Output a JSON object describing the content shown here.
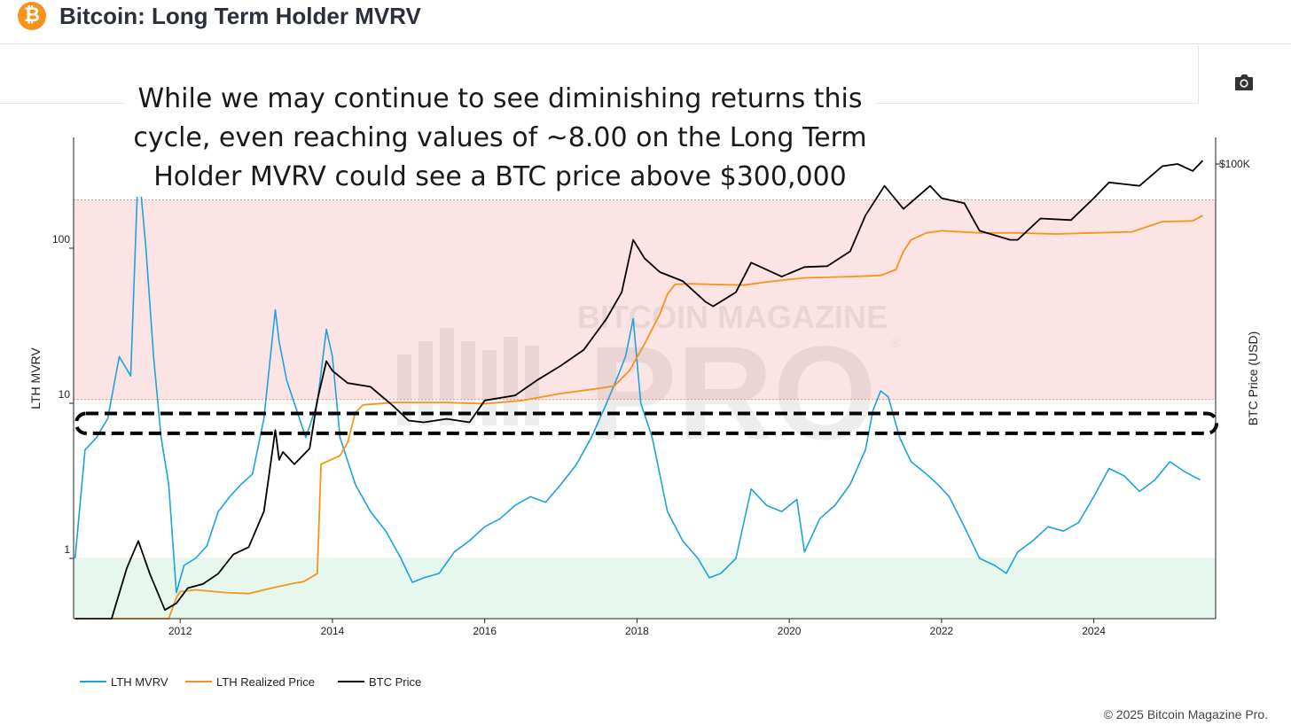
{
  "header": {
    "title": "Bitcoin: Long Term Holder MVRV",
    "logo_glyph": "₿",
    "logo_color": "#f7931a"
  },
  "toolbar": {
    "screenshot_icon": "camera-icon"
  },
  "annotation": "While we may continue to see diminishing returns this cycle, even reaching values of ~8.00 on the Long Term Holder MVRV could see a BTC price above $300,000",
  "watermark": {
    "line1": "BITCOIN MAGAZINE",
    "line2": "PRO",
    "mark": "®"
  },
  "footer": "© 2025 Bitcoin Magazine Pro.",
  "chart_data": {
    "type": "line",
    "ylabel": "LTH MVRV",
    "y2label": "BTC Price (USD)",
    "yscale": "log",
    "ylim": [
      0.4,
      500
    ],
    "y2scale": "log",
    "xlim": [
      2010.6,
      2025.6
    ],
    "x_ticks": [
      "2012",
      "2014",
      "2016",
      "2018",
      "2020",
      "2022",
      "2024"
    ],
    "y_ticks": [
      "1",
      "10",
      "100"
    ],
    "y2_ticks": [
      "$100K"
    ],
    "colors": {
      "mvrv": "#1aa3dd",
      "realized": "#f7931a",
      "price": "#000000",
      "red_zone": "#fde4e4",
      "green_zone": "#e6f8ee"
    },
    "zones": [
      {
        "name": "red",
        "from": 10.6,
        "to": 205
      },
      {
        "name": "green",
        "from": 0.4,
        "to": 1
      }
    ],
    "highlight_band": {
      "from": 6.4,
      "to": 8.6
    },
    "series": [
      {
        "name": "LTH MVRV",
        "x": [
          2010.62,
          2010.75,
          2010.9,
          2011.05,
          2011.2,
          2011.35,
          2011.45,
          2011.55,
          2011.65,
          2011.75,
          2011.85,
          2011.95,
          2012.05,
          2012.2,
          2012.35,
          2012.5,
          2012.65,
          2012.8,
          2012.95,
          2013.1,
          2013.25,
          2013.3,
          2013.4,
          2013.5,
          2013.65,
          2013.8,
          2013.92,
          2014.0,
          2014.1,
          2014.3,
          2014.5,
          2014.7,
          2014.9,
          2015.05,
          2015.2,
          2015.4,
          2015.6,
          2015.8,
          2016.0,
          2016.2,
          2016.4,
          2016.6,
          2016.8,
          2017.0,
          2017.2,
          2017.4,
          2017.6,
          2017.75,
          2017.85,
          2017.95,
          2018.05,
          2018.2,
          2018.4,
          2018.6,
          2018.8,
          2018.95,
          2019.1,
          2019.3,
          2019.5,
          2019.7,
          2019.9,
          2020.1,
          2020.2,
          2020.4,
          2020.6,
          2020.8,
          2021.0,
          2021.1,
          2021.2,
          2021.3,
          2021.45,
          2021.6,
          2021.8,
          2021.95,
          2022.1,
          2022.3,
          2022.5,
          2022.7,
          2022.85,
          2023.0,
          2023.2,
          2023.4,
          2023.6,
          2023.8,
          2024.0,
          2024.2,
          2024.4,
          2024.6,
          2024.8,
          2025.0,
          2025.2,
          2025.4
        ],
        "y": [
          1.0,
          5.0,
          6.0,
          8.0,
          20.0,
          15.0,
          350.0,
          100.0,
          20.0,
          6.0,
          3.0,
          0.6,
          0.9,
          1.0,
          1.2,
          2.0,
          2.5,
          3.0,
          3.5,
          8.0,
          40.0,
          25.0,
          14.0,
          10.0,
          6.0,
          10.0,
          30.0,
          20.0,
          6.0,
          3.0,
          2.0,
          1.5,
          1.0,
          0.7,
          0.75,
          0.8,
          1.1,
          1.3,
          1.6,
          1.8,
          2.2,
          2.5,
          2.3,
          3.0,
          4.0,
          6.0,
          10.0,
          15.0,
          20.0,
          35.0,
          10.0,
          6.0,
          2.0,
          1.3,
          1.0,
          0.75,
          0.8,
          1.0,
          2.8,
          2.2,
          2.0,
          2.4,
          1.1,
          1.8,
          2.2,
          3.0,
          5.0,
          9.0,
          12.0,
          11.0,
          6.0,
          4.2,
          3.5,
          3.0,
          2.5,
          1.6,
          1.0,
          0.9,
          0.8,
          1.1,
          1.3,
          1.6,
          1.5,
          1.7,
          2.5,
          3.8,
          3.4,
          2.7,
          3.2,
          4.2,
          3.6,
          3.2
        ]
      },
      {
        "name": "LTH Realized Price",
        "x": [
          2010.62,
          2011.1,
          2011.5,
          2011.75,
          2011.85,
          2011.95,
          2012.0,
          2012.2,
          2012.6,
          2012.9,
          2013.2,
          2013.5,
          2013.62,
          2013.8,
          2013.85,
          2014.1,
          2014.2,
          2014.3,
          2014.4,
          2014.8,
          2015.5,
          2016.0,
          2016.5,
          2017.0,
          2017.5,
          2017.7,
          2017.9,
          2018.1,
          2018.3,
          2018.4,
          2018.5,
          2018.7,
          2019.0,
          2019.4,
          2019.8,
          2020.2,
          2020.8,
          2021.2,
          2021.4,
          2021.5,
          2021.6,
          2021.8,
          2022.0,
          2022.5,
          2023.0,
          2023.5,
          2024.0,
          2024.5,
          2024.9,
          2025.3,
          2025.43
        ],
        "y": [
          0.06,
          0.07,
          0.18,
          0.4,
          1.5,
          4.0,
          4.6,
          4.8,
          4.5,
          4.4,
          5.0,
          5.6,
          5.8,
          7.0,
          90,
          110,
          150,
          300,
          360,
          380,
          380,
          370,
          400,
          470,
          530,
          560,
          800,
          1500,
          3000,
          4800,
          6000,
          6100,
          6000,
          5900,
          6500,
          7000,
          7200,
          7400,
          8500,
          13000,
          17000,
          20000,
          21000,
          20000,
          20000,
          19500,
          20000,
          20500,
          26000,
          26500,
          30000
        ]
      },
      {
        "name": "BTC Price",
        "x": [
          2010.62,
          2010.7,
          2010.9,
          2011.1,
          2011.3,
          2011.45,
          2011.6,
          2011.8,
          2011.95,
          2012.1,
          2012.3,
          2012.5,
          2012.7,
          2012.9,
          2013.1,
          2013.25,
          2013.3,
          2013.35,
          2013.5,
          2013.7,
          2013.8,
          2013.92,
          2014.0,
          2014.2,
          2014.5,
          2014.8,
          2015.0,
          2015.2,
          2015.5,
          2015.8,
          2016.0,
          2016.4,
          2016.7,
          2017.0,
          2017.3,
          2017.6,
          2017.8,
          2017.95,
          2018.1,
          2018.3,
          2018.6,
          2018.9,
          2019.0,
          2019.3,
          2019.5,
          2019.9,
          2020.2,
          2020.5,
          2020.8,
          2021.0,
          2021.25,
          2021.5,
          2021.85,
          2022.0,
          2022.3,
          2022.5,
          2022.9,
          2023.0,
          2023.3,
          2023.7,
          2024.0,
          2024.2,
          2024.6,
          2024.9,
          2025.1,
          2025.3,
          2025.43
        ],
        "y": [
          0.06,
          0.1,
          0.2,
          0.9,
          8.0,
          15.0,
          7.0,
          3.0,
          3.5,
          5.0,
          5.5,
          7.0,
          11.0,
          13.0,
          30.0,
          200.0,
          100.0,
          120.0,
          90.0,
          130.0,
          400.0,
          1000.0,
          800.0,
          600.0,
          550.0,
          350.0,
          250.0,
          240.0,
          260.0,
          240.0,
          400.0,
          450.0,
          650.0,
          900.0,
          1300.0,
          2700.0,
          5000.0,
          17000.0,
          11000.0,
          8000.0,
          6500.0,
          4000.0,
          3600.0,
          5000.0,
          10000.0,
          7200.0,
          9000.0,
          9200.0,
          13000.0,
          30000.0,
          60000.0,
          35000.0,
          60000.0,
          45000.0,
          40000.0,
          21000.0,
          17000.0,
          17000.0,
          28000.0,
          27000.0,
          45000.0,
          65000.0,
          60000.0,
          95000.0,
          100000.0,
          85000.0,
          108000.0
        ]
      }
    ]
  }
}
